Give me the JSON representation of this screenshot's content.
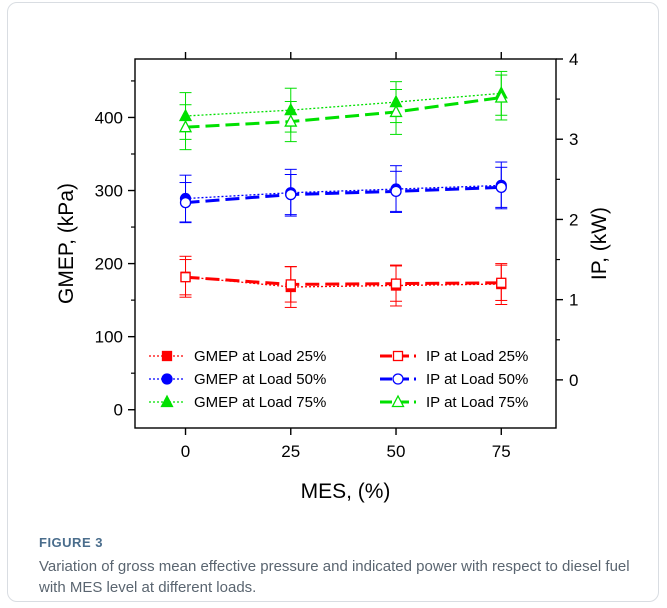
{
  "figure": {
    "label": "FIGURE 3",
    "caption": "Variation of gross mean effective pressure and indicated power with respect to diesel fuel with MES level at different loads."
  },
  "chart_data": {
    "type": "line",
    "title": "",
    "xlabel": "MES, (%)",
    "ylabel_left": "GMEP, (kPa)",
    "ylabel_right": "IP, (kW)",
    "x": [
      0,
      25,
      50,
      75
    ],
    "x_ticks": [
      "0",
      "25",
      "50",
      "75"
    ],
    "xlim": [
      -12,
      88
    ],
    "y_left_ticks": [
      "0",
      "100",
      "200",
      "300",
      "400"
    ],
    "y_left_lim": [
      -25,
      480
    ],
    "y_right_ticks": [
      "0",
      "1",
      "2",
      "3",
      "4"
    ],
    "y_right_lim": [
      -0.6,
      4.0
    ],
    "grid": false,
    "legend_placement": "bottom",
    "series": [
      {
        "name": "GMEP at Load 25%",
        "axis": "left",
        "color": "#ff0000",
        "marker": "square-filled",
        "line": "dotted",
        "values": [
          182,
          168,
          170,
          172
        ],
        "error": [
          28,
          28,
          28,
          28
        ]
      },
      {
        "name": "GMEP at Load 50%",
        "axis": "left",
        "color": "#0000ff",
        "marker": "circle-filled",
        "line": "dotted",
        "values": [
          289,
          297,
          302,
          307
        ],
        "error": [
          32,
          32,
          32,
          32
        ]
      },
      {
        "name": "GMEP at Load 75%",
        "axis": "left",
        "color": "#00e000",
        "marker": "triangle-filled",
        "line": "dotted",
        "values": [
          402,
          410,
          421,
          433
        ],
        "error": [
          32,
          30,
          28,
          30
        ]
      },
      {
        "name": "IP at Load 25%",
        "axis": "right",
        "color": "#ff0000",
        "marker": "square-open",
        "line": "dashed",
        "values": [
          1.28,
          1.19,
          1.2,
          1.21
        ],
        "error": [
          0.22,
          0.22,
          0.22,
          0.22
        ]
      },
      {
        "name": "IP at Load 50%",
        "axis": "right",
        "color": "#0000ff",
        "marker": "circle-open",
        "line": "dashed",
        "values": [
          2.21,
          2.31,
          2.35,
          2.4
        ],
        "error": [
          0.25,
          0.25,
          0.25,
          0.25
        ]
      },
      {
        "name": "IP at Load 75%",
        "axis": "right",
        "color": "#00e000",
        "marker": "triangle-open",
        "line": "dashed",
        "values": [
          3.15,
          3.22,
          3.34,
          3.52
        ],
        "error": [
          0.28,
          0.25,
          0.28,
          0.28
        ]
      }
    ]
  }
}
